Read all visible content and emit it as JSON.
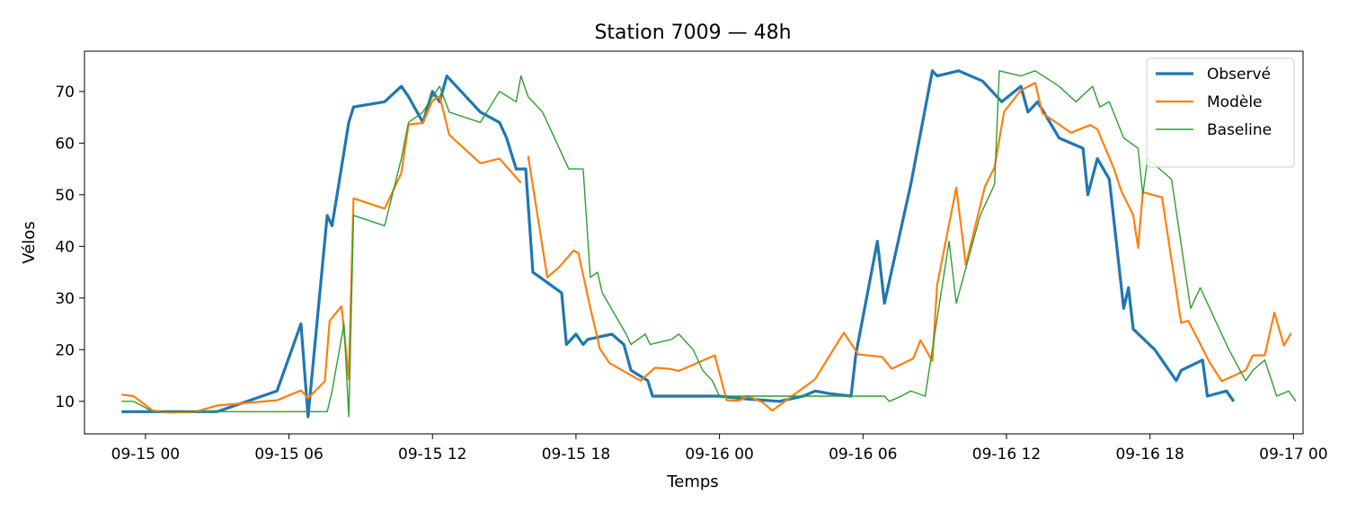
{
  "chart_data": {
    "type": "line",
    "title": "Station 7009 — 48h",
    "xlabel": "Temps",
    "ylabel": "Vélos",
    "x_ticks": [
      "09-15 00",
      "09-15 06",
      "09-15 12",
      "09-15 18",
      "09-16 00",
      "09-16 06",
      "09-16 12",
      "09-16 18",
      "09-17 00"
    ],
    "x_tick_hours": [
      0,
      6,
      12,
      18,
      24,
      30,
      36,
      42,
      48
    ],
    "y_ticks": [
      10,
      20,
      30,
      40,
      50,
      60,
      70
    ],
    "xlim": [
      "09-14 21:27",
      "09-17 00:24"
    ],
    "ylim": [
      3.7,
      77.8
    ],
    "grid": false,
    "legend_position": "top-right",
    "series": [
      {
        "name": "Observé",
        "color": "#1f77b4",
        "line_width": "thick",
        "points": [
          [
            "09-14 23:00",
            8
          ],
          [
            "09-15 00:00",
            8
          ],
          [
            "09-15 01:00",
            8
          ],
          [
            "09-15 02:00",
            8
          ],
          [
            "09-15 03:00",
            8
          ],
          [
            "09-15 05:30",
            12
          ],
          [
            "09-15 06:30",
            25
          ],
          [
            "09-15 06:48",
            7
          ],
          [
            "09-15 07:36",
            46
          ],
          [
            "09-15 07:48",
            44
          ],
          [
            "09-15 08:30",
            64
          ],
          [
            "09-15 08:42",
            67
          ],
          [
            "09-15 10:00",
            68
          ],
          [
            "09-15 10:42",
            71
          ],
          [
            "09-15 11:00",
            69
          ],
          [
            "09-15 11:36",
            64
          ],
          [
            "09-15 12:00",
            70
          ],
          [
            "09-15 12:18",
            68
          ],
          [
            "09-15 12:36",
            73
          ],
          [
            "09-15 14:00",
            66
          ],
          [
            "09-15 14:48",
            64
          ],
          [
            "09-15 15:06",
            61
          ],
          [
            "09-15 15:30",
            55
          ],
          [
            "09-15 15:54",
            55
          ],
          [
            "09-15 16:12",
            35
          ],
          [
            "09-15 17:24",
            31
          ],
          [
            "09-15 17:36",
            21
          ],
          [
            "09-15 18:00",
            23
          ],
          [
            "09-15 18:18",
            21
          ],
          [
            "09-15 18:30",
            22
          ],
          [
            "09-15 19:30",
            23
          ],
          [
            "09-15 20:00",
            21
          ],
          [
            "09-15 20:18",
            16
          ],
          [
            "09-15 21:00",
            14
          ],
          [
            "09-15 21:12",
            11
          ],
          [
            "09-15 22:00",
            11
          ],
          [
            "09-15 23:00",
            11
          ],
          [
            "09-16 00:00",
            11
          ],
          [
            "09-16 01:00",
            10.5
          ],
          [
            "09-16 02:30",
            10
          ],
          [
            "09-16 03:30",
            11
          ],
          [
            "09-16 04:00",
            12
          ],
          [
            "09-16 04:36",
            11.5
          ],
          [
            "09-16 05:30",
            11
          ],
          [
            "09-16 05:42",
            19
          ],
          [
            "09-16 06:36",
            41
          ],
          [
            "09-16 06:54",
            29
          ],
          [
            "09-16 08:00",
            52
          ],
          [
            "09-16 08:54",
            74
          ],
          [
            "09-16 09:06",
            73
          ],
          [
            "09-16 10:00",
            74
          ],
          [
            "09-16 11:00",
            72
          ],
          [
            "09-16 11:48",
            68
          ],
          [
            "09-16 12:36",
            71
          ],
          [
            "09-16 12:54",
            66
          ],
          [
            "09-16 13:18",
            68
          ],
          [
            "09-16 14:12",
            61
          ],
          [
            "09-16 15:12",
            59
          ],
          [
            "09-16 15:24",
            50
          ],
          [
            "09-16 15:48",
            57
          ],
          [
            "09-16 16:18",
            53
          ],
          [
            "09-16 16:54",
            28
          ],
          [
            "09-16 17:06",
            32
          ],
          [
            "09-16 17:18",
            24
          ],
          [
            "09-16 18:12",
            20
          ],
          [
            "09-16 19:06",
            14
          ],
          [
            "09-16 19:18",
            16
          ],
          [
            "09-16 20:12",
            18
          ],
          [
            "09-16 20:24",
            11
          ],
          [
            "09-16 21:12",
            12
          ],
          [
            "09-16 21:30",
            10
          ]
        ]
      },
      {
        "name": "Modèle",
        "color": "#ff7f0e",
        "line_width": "medium",
        "points": [
          [
            "09-14 23:00",
            11.3
          ],
          [
            "09-14 23:30",
            11
          ],
          [
            "09-15 00:18",
            8.2
          ],
          [
            "09-15 01:00",
            7.8
          ],
          [
            "09-15 02:06",
            8
          ],
          [
            "09-15 03:00",
            9.2
          ],
          [
            "09-15 04:00",
            9.6
          ],
          [
            "09-15 05:30",
            10.2
          ],
          [
            "09-15 06:30",
            12.1
          ],
          [
            "09-15 06:48",
            10.6
          ],
          [
            "09-15 07:30",
            13.9
          ],
          [
            "09-15 07:42",
            25.6
          ],
          [
            "09-15 08:12",
            28.4
          ],
          [
            "09-15 08:30",
            14.3
          ],
          [
            "09-15 08:42",
            49.3
          ],
          [
            "09-15 10:00",
            47.3
          ],
          [
            "09-15 10:42",
            54.2
          ],
          [
            "09-15 11:00",
            63.6
          ],
          [
            "09-15 11:36",
            63.9
          ],
          [
            "09-15 12:00",
            68.2
          ],
          [
            "09-15 12:18",
            69.1
          ],
          [
            "09-15 12:42",
            61.6
          ],
          [
            "09-15 14:00",
            56.1
          ],
          [
            "09-15 14:48",
            57
          ],
          [
            "09-15 15:42",
            52.3
          ]
        ]
      },
      {
        "name": "Modèle",
        "color": "#ff7f0e",
        "line_width": "medium",
        "legend": false,
        "points": [
          [
            "09-15 16:00",
            57.5
          ],
          [
            "09-15 16:48",
            34
          ],
          [
            "09-15 17:18",
            36
          ],
          [
            "09-15 17:54",
            39.2
          ],
          [
            "09-15 18:06",
            38.7
          ],
          [
            "09-15 18:36",
            28.1
          ],
          [
            "09-15 19:00",
            20.2
          ],
          [
            "09-15 19:24",
            17.4
          ],
          [
            "09-15 20:42",
            14
          ],
          [
            "09-15 21:18",
            16.5
          ],
          [
            "09-15 21:54",
            16.3
          ],
          [
            "09-15 22:18",
            15.9
          ],
          [
            "09-15 23:48",
            18.9
          ],
          [
            "09-16 00:18",
            10.2
          ],
          [
            "09-16 00:48",
            10.1
          ],
          [
            "09-16 01:12",
            11
          ],
          [
            "09-16 01:48",
            9.8
          ],
          [
            "09-16 02:12",
            8.2
          ],
          [
            "09-16 04:00",
            14.3
          ],
          [
            "09-16 05:12",
            23.3
          ],
          [
            "09-16 05:48",
            19.1
          ],
          [
            "09-16 06:48",
            18.6
          ],
          [
            "09-16 07:12",
            16.3
          ],
          [
            "09-16 08:06",
            18.3
          ],
          [
            "09-16 08:24",
            21.8
          ],
          [
            "09-16 08:54",
            17.8
          ],
          [
            "09-16 09:06",
            32.5
          ],
          [
            "09-16 09:54",
            51.4
          ],
          [
            "09-16 10:18",
            36.4
          ],
          [
            "09-16 11:06",
            51.6
          ],
          [
            "09-16 11:30",
            55.3
          ],
          [
            "09-16 11:54",
            66.1
          ],
          [
            "09-16 12:36",
            70.2
          ],
          [
            "09-16 13:12",
            71.7
          ],
          [
            "09-16 13:30",
            65.8
          ],
          [
            "09-16 14:06",
            63.9
          ],
          [
            "09-16 14:42",
            62
          ],
          [
            "09-16 15:30",
            63.5
          ],
          [
            "09-16 15:48",
            62.7
          ],
          [
            "09-16 16:30",
            55
          ],
          [
            "09-16 16:48",
            50.7
          ],
          [
            "09-16 17:18",
            46.1
          ],
          [
            "09-16 17:30",
            39.7
          ],
          [
            "09-16 17:42",
            50.5
          ],
          [
            "09-16 18:30",
            49.5
          ],
          [
            "09-16 19:18",
            25.2
          ],
          [
            "09-16 19:36",
            25.6
          ],
          [
            "09-16 20:30",
            17.5
          ],
          [
            "09-16 21:00",
            13.9
          ],
          [
            "09-16 22:00",
            16
          ],
          [
            "09-16 22:18",
            18.9
          ],
          [
            "09-16 22:48",
            18.9
          ],
          [
            "09-16 23:12",
            27.2
          ],
          [
            "09-16 23:36",
            20.8
          ],
          [
            "09-16 23:54",
            23.2
          ]
        ]
      },
      {
        "name": "Baseline",
        "color": "#2ca02c",
        "line_width": "thin",
        "points": [
          [
            "09-14 23:00",
            10
          ],
          [
            "09-14 23:30",
            10
          ],
          [
            "09-15 00:18",
            8
          ],
          [
            "09-15 06:00",
            8
          ],
          [
            "09-15 06:48",
            8
          ],
          [
            "09-15 07:36",
            8
          ],
          [
            "09-15 07:48",
            12
          ],
          [
            "09-15 08:18",
            25
          ],
          [
            "09-15 08:30",
            7
          ],
          [
            "09-15 08:42",
            46
          ],
          [
            "09-15 10:00",
            44
          ],
          [
            "09-15 10:42",
            57
          ],
          [
            "09-15 11:00",
            64
          ],
          [
            "09-15 11:36",
            66
          ],
          [
            "09-15 12:00",
            69
          ],
          [
            "09-15 12:18",
            71
          ],
          [
            "09-15 12:42",
            66
          ],
          [
            "09-15 14:00",
            64
          ],
          [
            "09-15 14:48",
            70
          ],
          [
            "09-15 15:30",
            68
          ],
          [
            "09-15 15:42",
            73
          ],
          [
            "09-15 16:00",
            69
          ],
          [
            "09-15 16:36",
            66
          ],
          [
            "09-15 17:06",
            61
          ],
          [
            "09-15 17:42",
            55
          ],
          [
            "09-15 18:18",
            55
          ],
          [
            "09-15 18:36",
            34
          ],
          [
            "09-15 18:54",
            35
          ],
          [
            "09-15 19:06",
            31
          ],
          [
            "09-15 20:06",
            23
          ],
          [
            "09-15 20:18",
            21
          ],
          [
            "09-15 20:54",
            23
          ],
          [
            "09-15 21:06",
            21
          ],
          [
            "09-15 22:00",
            22
          ],
          [
            "09-15 22:18",
            23
          ],
          [
            "09-15 22:54",
            20
          ],
          [
            "09-15 23:18",
            16
          ],
          [
            "09-15 23:42",
            14
          ],
          [
            "09-16 00:00",
            11
          ],
          [
            "09-16 00:18",
            11
          ],
          [
            "09-16 01:00",
            11
          ],
          [
            "09-16 02:00",
            11
          ],
          [
            "09-16 04:00",
            11
          ],
          [
            "09-16 06:12",
            11
          ],
          [
            "09-16 06:54",
            11
          ],
          [
            "09-16 07:06",
            10
          ],
          [
            "09-16 07:36",
            11
          ],
          [
            "09-16 08:00",
            12
          ],
          [
            "09-16 08:36",
            11
          ],
          [
            "09-16 09:36",
            41
          ],
          [
            "09-16 09:54",
            29
          ],
          [
            "09-16 10:54",
            46
          ],
          [
            "09-16 11:30",
            52
          ],
          [
            "09-16 11:42",
            74
          ],
          [
            "09-16 12:36",
            73
          ],
          [
            "09-16 13:12",
            74
          ],
          [
            "09-16 14:12",
            71
          ],
          [
            "09-16 14:54",
            68
          ],
          [
            "09-16 15:36",
            71
          ],
          [
            "09-16 15:54",
            67
          ],
          [
            "09-16 16:18",
            68
          ],
          [
            "09-16 16:54",
            61
          ],
          [
            "09-16 17:30",
            59
          ],
          [
            "09-16 17:42",
            50
          ],
          [
            "09-16 17:54",
            57
          ],
          [
            "09-16 18:54",
            53
          ],
          [
            "09-16 19:42",
            28
          ],
          [
            "09-16 20:06",
            32
          ],
          [
            "09-16 20:54",
            24
          ],
          [
            "09-16 21:18",
            20
          ],
          [
            "09-16 22:00",
            14
          ],
          [
            "09-16 22:18",
            16
          ],
          [
            "09-16 22:48",
            18
          ],
          [
            "09-16 23:18",
            11
          ],
          [
            "09-16 23:48",
            12
          ],
          [
            "09-17 00:06",
            10
          ]
        ]
      }
    ]
  }
}
